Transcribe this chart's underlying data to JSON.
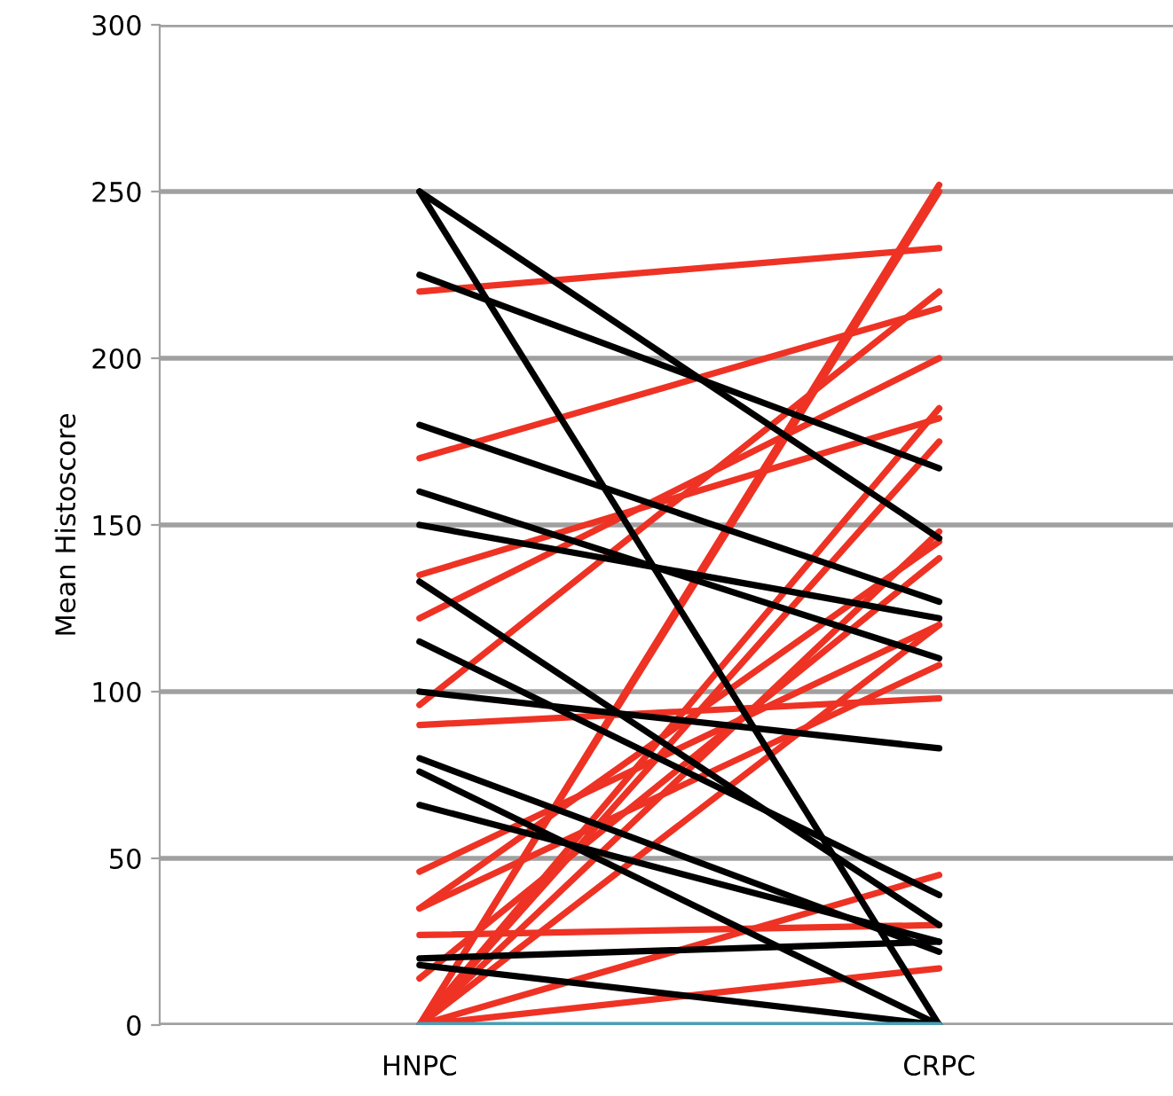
{
  "chart_data": {
    "type": "line",
    "ylabel": "Mean Histoscore",
    "categories": [
      "HNPC",
      "CRPC"
    ],
    "ylim": [
      0,
      300
    ],
    "yticks": [
      0,
      50,
      100,
      150,
      200,
      250,
      300
    ],
    "grid": "y",
    "marker": "none",
    "series": [
      {
        "color": "#ee3224",
        "values": [
          220,
          233
        ]
      },
      {
        "color": "#ee3224",
        "values": [
          170,
          215
        ]
      },
      {
        "color": "#ee3224",
        "values": [
          135,
          182
        ]
      },
      {
        "color": "#ee3224",
        "values": [
          122,
          200
        ]
      },
      {
        "color": "#ee3224",
        "values": [
          96,
          220
        ]
      },
      {
        "color": "#ee3224",
        "values": [
          90,
          98
        ]
      },
      {
        "color": "#ee3224",
        "values": [
          46,
          120
        ]
      },
      {
        "color": "#ee3224",
        "values": [
          35,
          145
        ]
      },
      {
        "color": "#ee3224",
        "values": [
          35,
          108
        ]
      },
      {
        "color": "#ee3224",
        "values": [
          27,
          30
        ]
      },
      {
        "color": "#ee3224",
        "values": [
          14,
          140
        ]
      },
      {
        "color": "#ee3224",
        "values": [
          0,
          252
        ]
      },
      {
        "color": "#ee3224",
        "values": [
          0,
          250
        ]
      },
      {
        "color": "#ee3224",
        "values": [
          0,
          185
        ]
      },
      {
        "color": "#ee3224",
        "values": [
          0,
          175
        ]
      },
      {
        "color": "#ee3224",
        "values": [
          0,
          148
        ]
      },
      {
        "color": "#ee3224",
        "values": [
          0,
          120
        ]
      },
      {
        "color": "#ee3224",
        "values": [
          0,
          45
        ]
      },
      {
        "color": "#ee3224",
        "values": [
          0,
          17
        ]
      },
      {
        "color": "#000000",
        "values": [
          250,
          0
        ]
      },
      {
        "color": "#000000",
        "values": [
          250,
          146
        ]
      },
      {
        "color": "#000000",
        "values": [
          225,
          167
        ]
      },
      {
        "color": "#000000",
        "values": [
          180,
          127
        ]
      },
      {
        "color": "#000000",
        "values": [
          160,
          110
        ]
      },
      {
        "color": "#000000",
        "values": [
          150,
          122
        ]
      },
      {
        "color": "#000000",
        "values": [
          133,
          30
        ]
      },
      {
        "color": "#000000",
        "values": [
          115,
          39
        ]
      },
      {
        "color": "#000000",
        "values": [
          100,
          83
        ]
      },
      {
        "color": "#000000",
        "values": [
          80,
          22
        ]
      },
      {
        "color": "#000000",
        "values": [
          76,
          0
        ]
      },
      {
        "color": "#000000",
        "values": [
          66,
          25
        ]
      },
      {
        "color": "#000000",
        "values": [
          20,
          25
        ]
      },
      {
        "color": "#000000",
        "values": [
          18,
          0
        ]
      },
      {
        "color": "#4a9fb5",
        "values": [
          0,
          0
        ]
      }
    ]
  }
}
